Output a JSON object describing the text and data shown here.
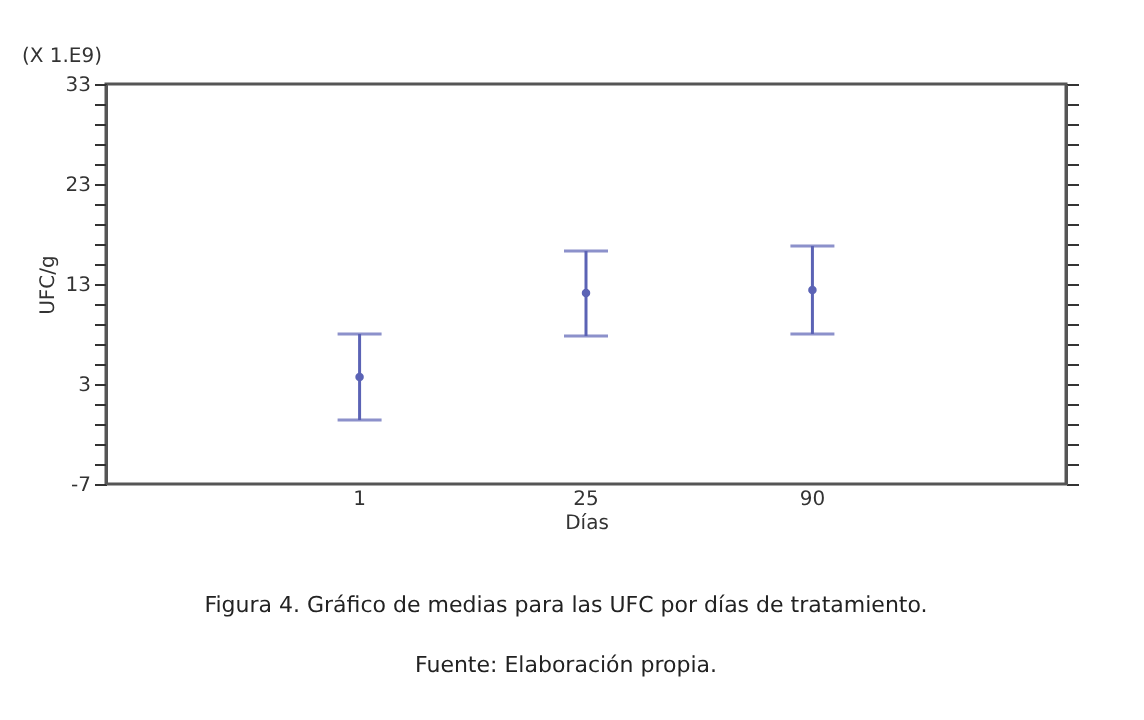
{
  "chart_data": {
    "type": "scatter",
    "xlabel": "Días",
    "ylabel": "UFC/g",
    "categories": [
      "1",
      "25",
      "90"
    ],
    "series": [
      {
        "color": "#5b63b5",
        "values": [
          3.7,
          12.1,
          12.4
        ],
        "errors": [
          [
            -0.6,
            8.0
          ],
          [
            7.8,
            16.3
          ],
          [
            8.0,
            16.8
          ]
        ]
      }
    ],
    "ylim": [
      -7,
      33
    ],
    "yticks": [
      -7,
      {
        "value": -5,
        "label": null
      },
      {
        "value": -3,
        "label": null
      },
      {
        "value": -1,
        "label": null
      },
      {
        "value": 1,
        "label": null
      },
      3,
      {
        "value": 5,
        "label": null
      },
      {
        "value": 7,
        "label": null
      },
      {
        "value": 9,
        "label": null
      },
      {
        "value": 11,
        "label": null
      },
      13,
      {
        "value": 15,
        "label": null
      },
      {
        "value": 17,
        "label": null
      },
      {
        "value": 19,
        "label": null
      },
      {
        "value": 21,
        "label": null
      },
      23,
      {
        "value": 25,
        "label": null
      },
      {
        "value": 27,
        "label": null
      },
      {
        "value": 29,
        "label": null
      },
      {
        "value": 31,
        "label": null
      },
      33
    ],
    "marker": "circle",
    "grid": false,
    "annotations": [
      "(X 1.E9)",
      "Figura 4. Gráfico de medias para las UFC por días de tratamiento.",
      "Fuente: Elaboración propia."
    ]
  }
}
